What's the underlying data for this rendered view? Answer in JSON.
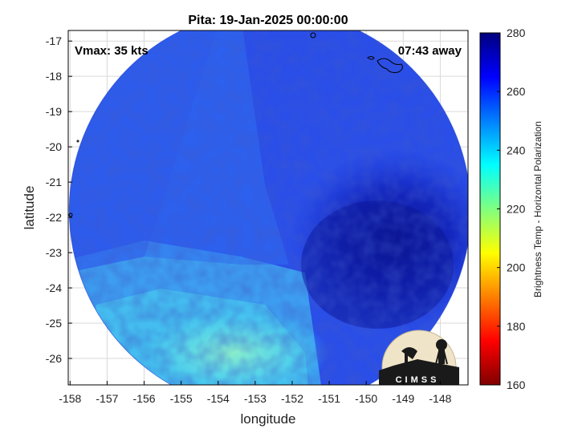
{
  "chart_data": {
    "type": "heatmap",
    "title": "Pita: 19-Jan-2025 00:00:00",
    "xlabel": "longitude",
    "ylabel": "latitude",
    "xlim": [
      -158.05,
      -147.25
    ],
    "ylim": [
      -26.75,
      -16.7
    ],
    "xticks": [
      -158,
      -157,
      -156,
      -155,
      -154,
      -153,
      -152,
      -151,
      -150,
      -149,
      -148
    ],
    "yticks": [
      -17,
      -18,
      -19,
      -20,
      -21,
      -22,
      -23,
      -24,
      -25,
      -26
    ],
    "grid": true,
    "annotations": {
      "vmax": "Vmax: 35 kts",
      "time_away": "07:43 away"
    },
    "colorbar": {
      "label": "Brightness Temp - Horizontal Polarization",
      "range": [
        160,
        280
      ],
      "ticks": [
        160,
        180,
        200,
        220,
        240,
        260,
        280
      ],
      "colormap": "jet"
    },
    "swath": {
      "center_lon": -152.6,
      "center_lat": -21.8,
      "radius_deg": 5.5,
      "features": [
        {
          "name": "cold core / storm center",
          "lon": -149.4,
          "lat": -22.3,
          "value": 270
        },
        {
          "name": "warm sector",
          "lon": -153.2,
          "lat": -25.6,
          "value": 232
        }
      ]
    },
    "logo_text": "CIMSS"
  },
  "colors": {
    "background": "#ffffff",
    "frame": "#000000",
    "grid": "#d9d9d9",
    "coastline": "#000000"
  }
}
